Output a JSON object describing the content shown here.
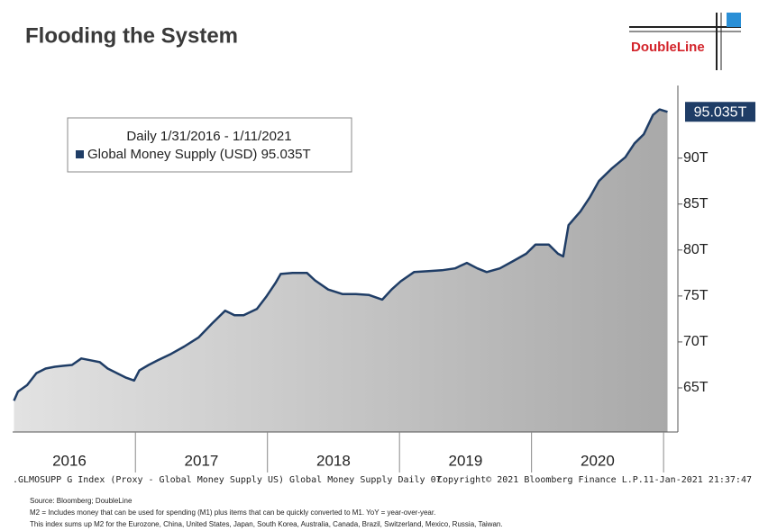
{
  "chart_data": {
    "type": "area",
    "title": "Flooding the System",
    "logo": "DoubleLine",
    "legend_header": "Daily 1/31/2016 - 1/11/2021",
    "series": [
      {
        "name": "Global Money Supply (USD)",
        "color": "#1f3d66",
        "x": [
          2016.08,
          2016.11,
          2016.18,
          2016.25,
          2016.32,
          2016.39,
          2016.45,
          2016.52,
          2016.59,
          2016.66,
          2016.73,
          2016.79,
          2016.86,
          2016.93,
          2016.99,
          2017.03,
          2017.1,
          2017.17,
          2017.27,
          2017.37,
          2017.48,
          2017.58,
          2017.68,
          2017.75,
          2017.82,
          2017.92,
          2017.99,
          2018.06,
          2018.1,
          2018.19,
          2018.3,
          2018.36,
          2018.46,
          2018.57,
          2018.67,
          2018.77,
          2018.87,
          2018.94,
          2019.01,
          2019.11,
          2019.22,
          2019.32,
          2019.42,
          2019.51,
          2019.59,
          2019.66,
          2019.76,
          2019.86,
          2019.96,
          2020.03,
          2020.13,
          2020.2,
          2020.24,
          2020.28,
          2020.37,
          2020.44,
          2020.51,
          2020.61,
          2020.71,
          2020.78,
          2020.85,
          2020.92,
          2020.97,
          2021.03
        ],
        "values": [
          63.6,
          64.6,
          65.3,
          66.6,
          67.1,
          67.3,
          67.4,
          67.5,
          68.2,
          68.0,
          67.8,
          67.1,
          66.6,
          66.1,
          65.8,
          66.9,
          67.5,
          68.0,
          68.7,
          69.5,
          70.5,
          72.0,
          73.4,
          72.9,
          72.9,
          73.6,
          74.9,
          76.4,
          77.4,
          77.5,
          77.5,
          76.7,
          75.7,
          75.2,
          75.2,
          75.1,
          74.6,
          75.7,
          76.6,
          77.6,
          77.7,
          77.8,
          78.0,
          78.6,
          78.0,
          77.6,
          78.0,
          78.8,
          79.6,
          80.6,
          80.6,
          79.6,
          79.3,
          82.7,
          84.2,
          85.7,
          87.5,
          88.9,
          90.1,
          91.6,
          92.6,
          94.7,
          95.3,
          95.035
        ]
      }
    ],
    "last_label": "95.035T",
    "xlim": [
      2016.07,
      2021.04
    ],
    "x_dividers": [
      2017,
      2018,
      2019,
      2020,
      2021
    ],
    "xticks": [
      {
        "value": 2016.5,
        "label": "2016"
      },
      {
        "value": 2017.5,
        "label": "2017"
      },
      {
        "value": 2018.5,
        "label": "2018"
      },
      {
        "value": 2019.5,
        "label": "2019"
      },
      {
        "value": 2020.5,
        "label": "2020"
      }
    ],
    "ylim": [
      60.2,
      97.9
    ],
    "yticks": [
      {
        "value": 65,
        "label": "65T"
      },
      {
        "value": 70,
        "label": "70T"
      },
      {
        "value": 75,
        "label": "75T"
      },
      {
        "value": 80,
        "label": "80T"
      },
      {
        "value": 85,
        "label": "85T"
      },
      {
        "value": 90,
        "label": "90T"
      }
    ],
    "footer_index": ".GLMOSUPP G Index (Proxy - Global Money Supply US) Global Money Supply  Daily 07",
    "footer_copyright": "Copyright© 2021 Bloomberg Finance L.P.",
    "footer_time": "11-Jan-2021 21:37:47",
    "notes": [
      "Source: Bloomberg; DoubleLine",
      "M2 = Includes money that can be used for spending (M1) plus items that can be quickly converted to M1. YoY = year-over-year.",
      "This index sums up M2 for the Eurozone, China, United States, Japan, South Korea, Australia, Canada, Brazil, Switzerland, Mexico, Russia, Taiwan."
    ]
  }
}
